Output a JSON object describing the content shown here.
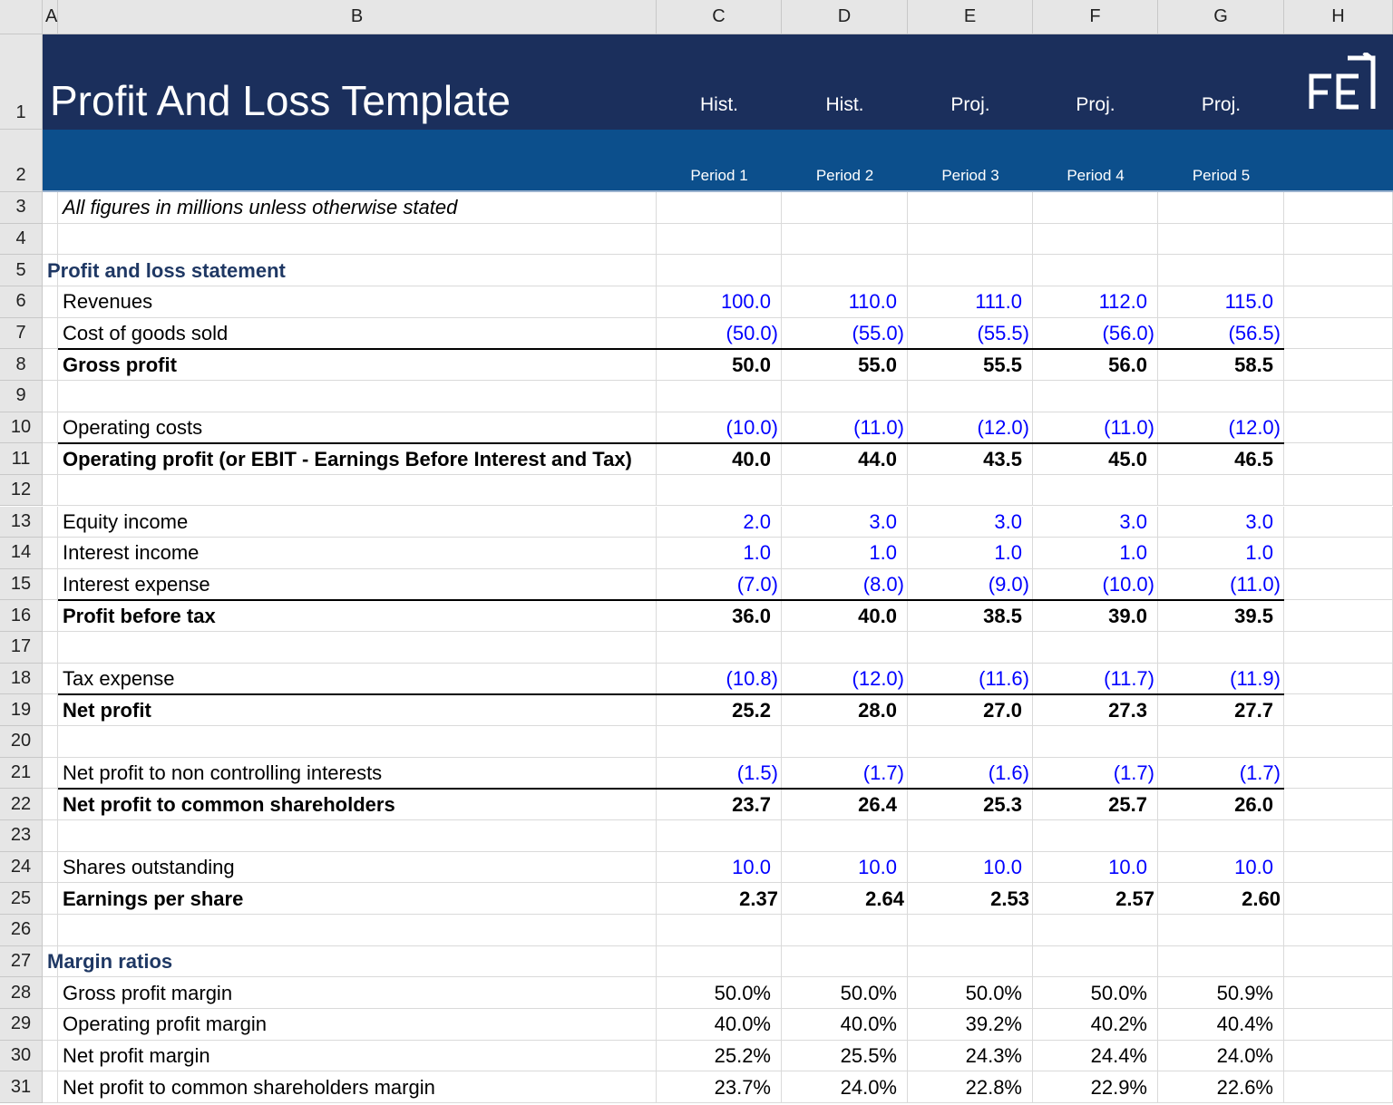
{
  "column_letters": [
    "A",
    "B",
    "C",
    "D",
    "E",
    "F",
    "G",
    "H"
  ],
  "row_numbers": [
    1,
    2,
    3,
    4,
    5,
    6,
    7,
    8,
    9,
    10,
    11,
    12,
    13,
    14,
    15,
    16,
    17,
    18,
    19,
    20,
    21,
    22,
    23,
    24,
    25,
    26,
    27,
    28,
    29,
    30,
    31
  ],
  "title": "Profit And Loss Template",
  "period_types": [
    "Hist.",
    "Hist.",
    "Proj.",
    "Proj.",
    "Proj."
  ],
  "periods": [
    "Period 1",
    "Period 2",
    "Period 3",
    "Period 4",
    "Period 5"
  ],
  "lines": [
    {
      "label": "All figures in millions unless otherwise stated",
      "kind": "note"
    },
    null,
    {
      "label": "Profit and loss statement",
      "kind": "section"
    },
    {
      "label": "Revenues",
      "kind": "input",
      "values": [
        "100.0",
        "110.0",
        "111.0",
        "112.0",
        "115.0"
      ]
    },
    {
      "label": "Cost of goods sold",
      "kind": "input",
      "values": [
        "(50.0)",
        "(55.0)",
        "(55.5)",
        "(56.0)",
        "(56.5)"
      ]
    },
    {
      "label": "Gross profit",
      "kind": "total",
      "values": [
        "50.0",
        "55.0",
        "55.5",
        "56.0",
        "58.5"
      ]
    },
    null,
    {
      "label": "Operating costs",
      "kind": "input",
      "values": [
        "(10.0)",
        "(11.0)",
        "(12.0)",
        "(11.0)",
        "(12.0)"
      ]
    },
    {
      "label": "Operating profit (or EBIT - Earnings Before Interest and Tax)",
      "kind": "total",
      "values": [
        "40.0",
        "44.0",
        "43.5",
        "45.0",
        "46.5"
      ]
    },
    null,
    {
      "label": "Equity income",
      "kind": "input",
      "values": [
        "2.0",
        "3.0",
        "3.0",
        "3.0",
        "3.0"
      ]
    },
    {
      "label": "Interest income",
      "kind": "input",
      "values": [
        "1.0",
        "1.0",
        "1.0",
        "1.0",
        "1.0"
      ]
    },
    {
      "label": "Interest expense",
      "kind": "input",
      "values": [
        "(7.0)",
        "(8.0)",
        "(9.0)",
        "(10.0)",
        "(11.0)"
      ]
    },
    {
      "label": "Profit before tax",
      "kind": "total",
      "values": [
        "36.0",
        "40.0",
        "38.5",
        "39.0",
        "39.5"
      ]
    },
    null,
    {
      "label": "Tax expense",
      "kind": "input",
      "values": [
        "(10.8)",
        "(12.0)",
        "(11.6)",
        "(11.7)",
        "(11.9)"
      ]
    },
    {
      "label": "Net profit",
      "kind": "total",
      "values": [
        "25.2",
        "28.0",
        "27.0",
        "27.3",
        "27.7"
      ]
    },
    null,
    {
      "label": "Net profit to non controlling interests",
      "kind": "input",
      "values": [
        "(1.5)",
        "(1.7)",
        "(1.6)",
        "(1.7)",
        "(1.7)"
      ]
    },
    {
      "label": "Net profit to common shareholders",
      "kind": "total",
      "values": [
        "23.7",
        "26.4",
        "25.3",
        "25.7",
        "26.0"
      ]
    },
    null,
    {
      "label": "Shares outstanding",
      "kind": "input",
      "values": [
        "10.0",
        "10.0",
        "10.0",
        "10.0",
        "10.0"
      ]
    },
    {
      "label": "Earnings per share",
      "kind": "bold",
      "values": [
        "2.37",
        "2.64",
        "2.53",
        "2.57",
        "2.60"
      ]
    },
    null,
    {
      "label": "Margin ratios",
      "kind": "section"
    },
    {
      "label": "Gross profit margin",
      "kind": "ratio",
      "values": [
        "50.0%",
        "50.0%",
        "50.0%",
        "50.0%",
        "50.9%"
      ]
    },
    {
      "label": "Operating profit margin",
      "kind": "ratio",
      "values": [
        "40.0%",
        "40.0%",
        "39.2%",
        "40.2%",
        "40.4%"
      ]
    },
    {
      "label": "Net profit margin",
      "kind": "ratio",
      "values": [
        "25.2%",
        "25.5%",
        "24.3%",
        "24.4%",
        "24.0%"
      ]
    },
    {
      "label": "Net profit to common shareholders margin",
      "kind": "ratio",
      "values": [
        "23.7%",
        "24.0%",
        "22.8%",
        "22.9%",
        "22.6%"
      ]
    }
  ]
}
